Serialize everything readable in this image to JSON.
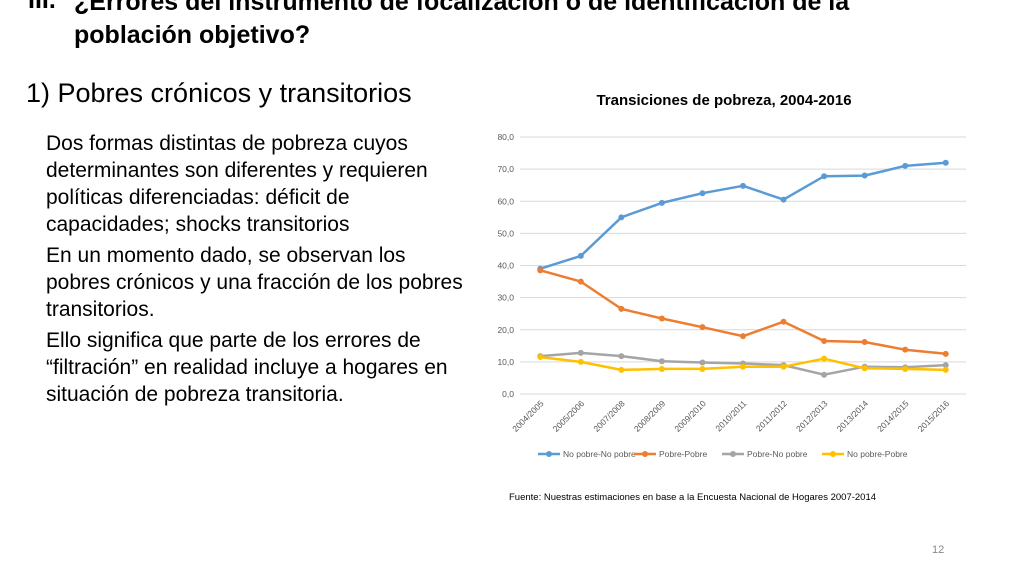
{
  "header": {
    "number": "III.",
    "title": "¿Errores del instrumento de focalización o de identificación de la población objetivo?"
  },
  "subtitle": "1) Pobres crónicos y transitorios",
  "bullets": [
    "Dos formas distintas de pobreza cuyos determinantes son diferentes y requieren políticas diferenciadas: déficit de capacidades; shocks transitorios",
    "En un momento dado, se observan los pobres crónicos y una fracción de los pobres transitorios.",
    "Ello significa que parte de los errores de “filtración” en realidad incluye a hogares en situación de pobreza transitoria."
  ],
  "source": "Fuente: Nuestras estimaciones en base a la Encuesta Nacional de Hogares 2007-2014",
  "page_number": "12",
  "chart_data": {
    "type": "line",
    "title": "Transiciones de pobreza, 2004-2016",
    "categories": [
      "2004/2005",
      "2005/2006",
      "2007/2008",
      "2008/2009",
      "2009/2010",
      "2010/2011",
      "2011/2012",
      "2012/2013",
      "2013/2014",
      "2014/2015",
      "2015/2016"
    ],
    "ylim": [
      0,
      80
    ],
    "yticks": [
      "0,0",
      "10,0",
      "20,0",
      "30,0",
      "40,0",
      "50,0",
      "60,0",
      "70,0",
      "80,0"
    ],
    "grid": true,
    "legend_position": "bottom",
    "series": [
      {
        "name": "No pobre-No pobre",
        "color": "#5b9bd5",
        "values": [
          39.0,
          43.0,
          55.0,
          59.5,
          62.5,
          64.8,
          60.5,
          67.8,
          68.0,
          71.0,
          72.0
        ]
      },
      {
        "name": "Pobre-Pobre",
        "color": "#ed7d31",
        "values": [
          38.5,
          35.0,
          26.5,
          23.5,
          20.8,
          18.0,
          22.5,
          16.5,
          16.2,
          13.8,
          12.5
        ]
      },
      {
        "name": "Pobre-No pobre",
        "color": "#a5a5a5",
        "values": [
          11.8,
          12.8,
          11.8,
          10.2,
          9.8,
          9.5,
          9.0,
          6.0,
          8.5,
          8.3,
          9.0
        ]
      },
      {
        "name": "No pobre-Pobre",
        "color": "#ffc000",
        "values": [
          11.5,
          10.0,
          7.5,
          7.8,
          7.8,
          8.5,
          8.5,
          11.0,
          8.0,
          7.8,
          7.5
        ]
      }
    ]
  }
}
